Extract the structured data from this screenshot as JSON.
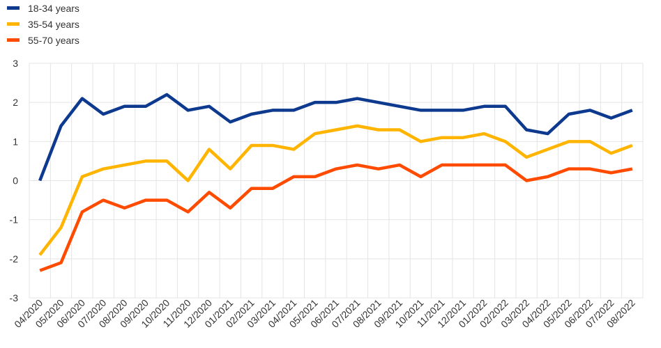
{
  "chart_data": {
    "type": "line",
    "title": "",
    "xlabel": "",
    "ylabel": "",
    "ylim": [
      -3,
      3
    ],
    "yticks": [
      "-3",
      "-2",
      "-1",
      "0",
      "1",
      "2",
      "3"
    ],
    "grid": "vertical and horizontal",
    "legend_position": "top-left",
    "categories": [
      "04/2020",
      "05/2020",
      "06/2020",
      "07/2020",
      "08/2020",
      "09/2020",
      "10/2020",
      "11/2020",
      "12/2020",
      "01/2021",
      "02/2021",
      "03/2021",
      "04/2021",
      "05/2021",
      "06/2021",
      "07/2021",
      "08/2021",
      "09/2021",
      "10/2021",
      "11/2021",
      "12/2021",
      "01/2022",
      "02/2022",
      "03/2022",
      "04/2022",
      "05/2022",
      "06/2022",
      "07/2022",
      "08/2022"
    ],
    "series": [
      {
        "name": "18-34 years",
        "color": "#0d3a8e",
        "values": [
          0.0,
          1.4,
          2.1,
          1.7,
          1.9,
          1.9,
          2.2,
          1.8,
          1.9,
          1.5,
          1.7,
          1.8,
          1.8,
          2.0,
          2.0,
          2.1,
          2.0,
          1.9,
          1.8,
          1.8,
          1.8,
          1.9,
          1.9,
          1.3,
          1.2,
          1.7,
          1.8,
          1.6,
          1.8
        ]
      },
      {
        "name": "35-54 years",
        "color": "#ffb400",
        "values": [
          -1.9,
          -1.2,
          0.1,
          0.3,
          0.4,
          0.5,
          0.5,
          0.0,
          0.8,
          0.3,
          0.9,
          0.9,
          0.8,
          1.2,
          1.3,
          1.4,
          1.3,
          1.3,
          1.0,
          1.1,
          1.1,
          1.2,
          1.0,
          0.6,
          0.8,
          1.0,
          1.0,
          0.7,
          0.9
        ]
      },
      {
        "name": "55-70 years",
        "color": "#ff4b00",
        "values": [
          -2.3,
          -2.1,
          -0.8,
          -0.5,
          -0.7,
          -0.5,
          -0.5,
          -0.8,
          -0.3,
          -0.7,
          -0.2,
          -0.2,
          0.1,
          0.1,
          0.3,
          0.4,
          0.3,
          0.4,
          0.1,
          0.4,
          0.4,
          0.4,
          0.4,
          0.0,
          0.1,
          0.3,
          0.3,
          0.2,
          0.3
        ]
      }
    ]
  }
}
